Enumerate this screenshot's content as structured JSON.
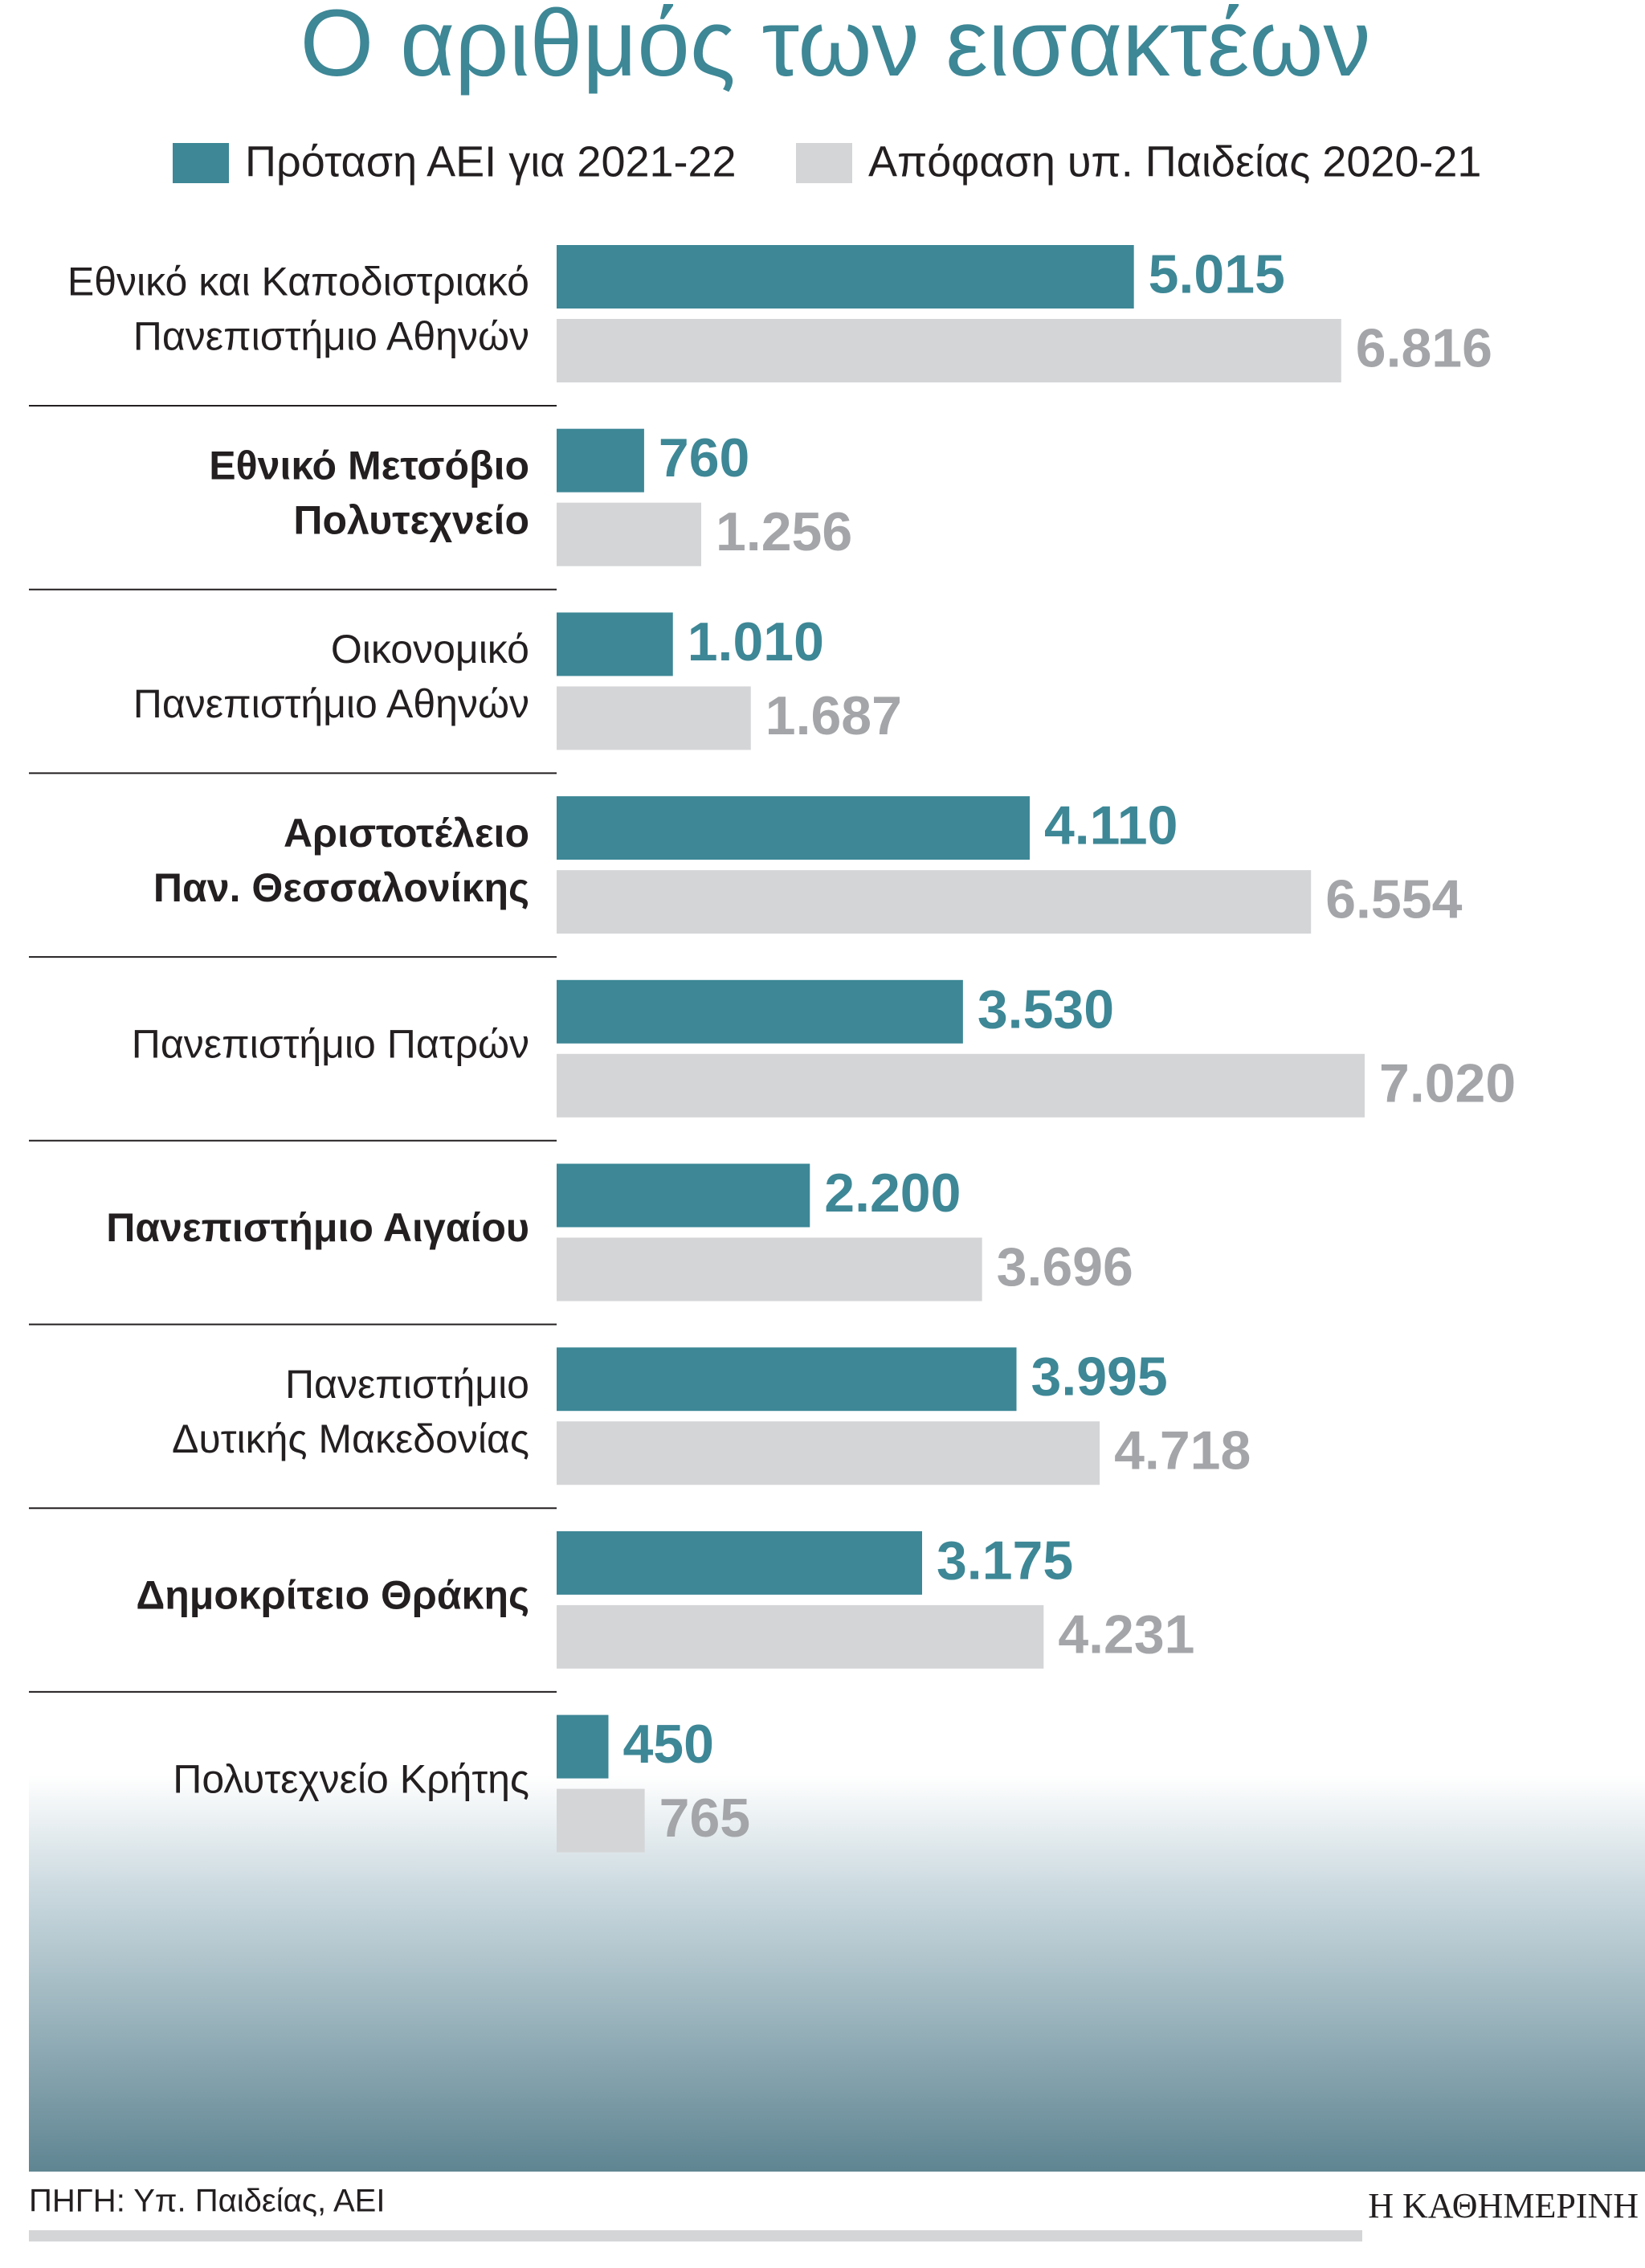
{
  "chart_data": {
    "type": "bar",
    "orientation": "horizontal",
    "title": "Ο αριθμός των εισακτέων",
    "categories": [
      [
        "Εθνικό και Καποδιστριακό",
        "Πανεπιστήμιο Αθηνών"
      ],
      [
        "Εθνικό Μετσόβιο",
        "Πολυτεχνείο"
      ],
      [
        "Οικονομικό",
        "Πανεπιστήμιο Αθηνών"
      ],
      [
        "Αριστοτέλειο",
        "Παν. Θεσσαλονίκης"
      ],
      [
        "Πανεπιστήμιο Πατρών"
      ],
      [
        "Πανεπιστήμιο Αιγαίου"
      ],
      [
        "Πανεπιστήμιο",
        "Δυτικής Μακεδονίας"
      ],
      [
        "Δημοκρίτειο Θράκης"
      ],
      [
        "Πολυτεχνείο Κρήτης"
      ]
    ],
    "series": [
      {
        "name": "Πρόταση ΑΕΙ για 2021-22",
        "color": "#3d8796",
        "label_color": "#3d8796",
        "values": [
          5015,
          760,
          1010,
          4110,
          3530,
          2200,
          3995,
          3175,
          450
        ],
        "value_labels": [
          "5.015",
          "760",
          "1.010",
          "4.110",
          "3.530",
          "2.200",
          "3.995",
          "3.175",
          "450"
        ]
      },
      {
        "name": "Απόφαση υπ. Παιδείας 2020-21",
        "color": "#d4d5d7",
        "label_color": "#a3a5a8",
        "values": [
          6816,
          1256,
          1687,
          6554,
          7020,
          3696,
          4718,
          4231,
          765
        ],
        "value_labels": [
          "6.816",
          "1.256",
          "1.687",
          "6.554",
          "7.020",
          "3.696",
          "4.718",
          "4.231",
          "765"
        ]
      }
    ],
    "source": "ΠΗΓΗ: Υπ. Παιδείας, ΑΕΙ",
    "publisher": "Η ΚΑΘΗΜΕΡΙΝΗ"
  }
}
